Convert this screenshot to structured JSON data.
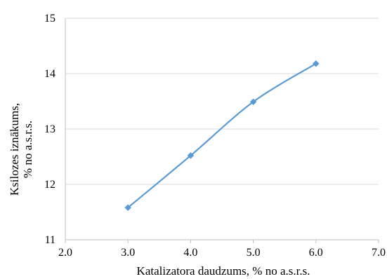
{
  "chart_data": {
    "type": "line",
    "title": "",
    "xlabel": "Katalizatora daudzums, % no a.s.r.s.",
    "ylabel_line1": "Ksilozes  iznākums,",
    "ylabel_line2": "% no a.s.r.s.",
    "xlim": [
      2.0,
      7.0
    ],
    "ylim": [
      11,
      15
    ],
    "xticks": [
      "2.0",
      "3.0",
      "4.0",
      "5.0",
      "6.0",
      "7.0"
    ],
    "yticks": [
      "11",
      "12",
      "13",
      "14",
      "15"
    ],
    "grid": "horizontal",
    "smooth": true,
    "series": [
      {
        "x": [
          3.0,
          4.0,
          5.0,
          6.0
        ],
        "y": [
          11.58,
          12.52,
          13.49,
          14.18
        ],
        "color": "#5b9bd5",
        "marker": "diamond"
      }
    ],
    "colors": {
      "grid": "#d9d9d9",
      "axis": "#bfbfbf",
      "series": "#5b9bd5"
    }
  }
}
